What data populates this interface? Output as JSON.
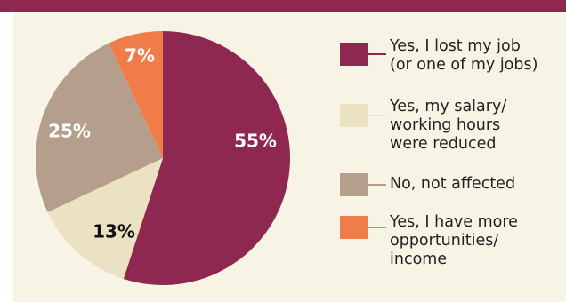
{
  "colors": {
    "header_bar": "#8e2850",
    "background": "#f7f3e5"
  },
  "chart_data": {
    "type": "pie",
    "title": "",
    "categories": [
      "Yes, I lost my job (or one of my jobs)",
      "Yes, my salary/ working hours were reduced",
      "No, not affected",
      "Yes, I have more opportunities/ income"
    ],
    "values": [
      55,
      13,
      25,
      7
    ],
    "value_labels": [
      "55%",
      "13%",
      "25%",
      "7%"
    ],
    "colors": [
      "#8e2850",
      "#ebe2c4",
      "#b59f8c",
      "#f07c49"
    ],
    "label_colors": [
      "#ffffff",
      "#111111",
      "#ffffff",
      "#ffffff"
    ],
    "start_angle_deg": 0,
    "direction": "clockwise",
    "legend_position": "right"
  },
  "legend": {
    "items": [
      {
        "lines": [
          "Yes, I lost my job",
          "(or one of my jobs)"
        ]
      },
      {
        "lines": [
          "Yes, my salary/",
          "working hours",
          "were reduced"
        ]
      },
      {
        "lines": [
          "No, not affected"
        ]
      },
      {
        "lines": [
          "Yes, I have more",
          "opportunities/",
          "income"
        ]
      }
    ]
  }
}
